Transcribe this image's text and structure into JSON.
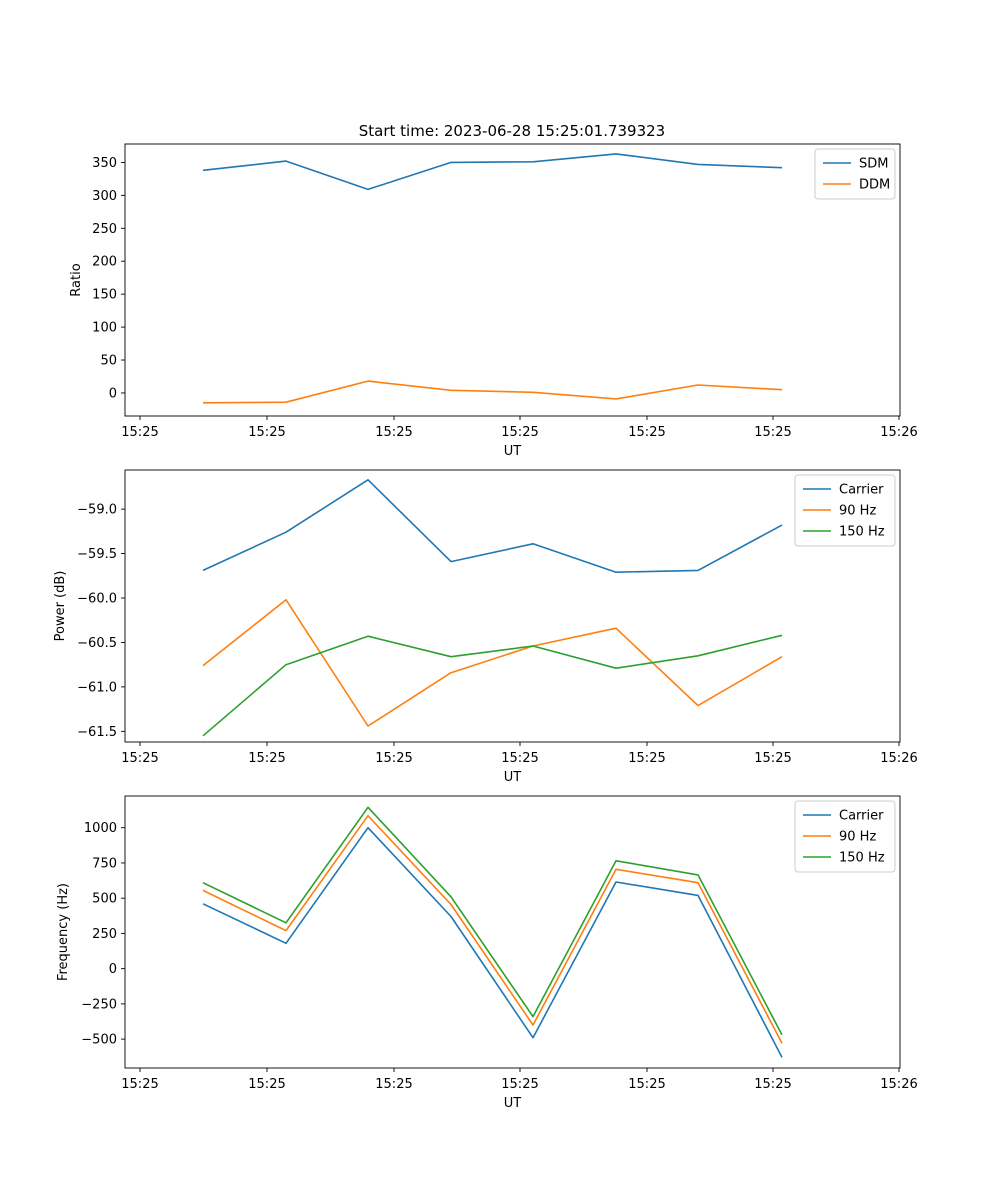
{
  "figure": {
    "title": "Start time: 2023-06-28 15:25:01.739323"
  },
  "colors": {
    "blue": "#1f77b4",
    "orange": "#ff7f0e",
    "green": "#2ca02c"
  },
  "chart_data": [
    {
      "type": "line",
      "title": "Start time: 2023-06-28 15:25:01.739323",
      "xlabel": "UT",
      "ylabel": "Ratio",
      "x_tick_labels": [
        "15:25",
        "15:25",
        "15:25",
        "15:25",
        "15:25",
        "15:25",
        "15:25"
      ],
      "x_tick_last": "15:26",
      "y_ticks": [
        0,
        50,
        100,
        150,
        200,
        250,
        300,
        350
      ],
      "ylim": [
        -35,
        378
      ],
      "legend": "top-right",
      "series": [
        {
          "name": "SDM",
          "color": "blue",
          "values": [
            338,
            352,
            309,
            350,
            351,
            363,
            347,
            342
          ]
        },
        {
          "name": "DDM",
          "color": "orange",
          "values": [
            -15,
            -14,
            18,
            4,
            1,
            -9,
            12,
            5
          ]
        }
      ]
    },
    {
      "type": "line",
      "title": "",
      "xlabel": "UT",
      "ylabel": "Power (dB)",
      "x_tick_labels": [
        "15:25",
        "15:25",
        "15:25",
        "15:25",
        "15:25",
        "15:25",
        "15:25"
      ],
      "x_tick_last": "15:26",
      "y_ticks": [
        -61.5,
        -61.0,
        -60.5,
        -60.0,
        -59.5,
        -59.0
      ],
      "y_tick_labels": [
        "−61.5",
        "−61.0",
        "−60.5",
        "−60.0",
        "−59.5",
        "−59.0"
      ],
      "ylim": [
        -61.62,
        -58.56
      ],
      "legend": "top-right",
      "series": [
        {
          "name": "Carrier",
          "color": "blue",
          "values": [
            -59.69,
            -59.26,
            -58.67,
            -59.59,
            -59.39,
            -59.71,
            -59.69,
            -59.18
          ]
        },
        {
          "name": "90 Hz",
          "color": "orange",
          "values": [
            -60.76,
            -60.02,
            -61.44,
            -60.84,
            -60.54,
            -60.34,
            -61.21,
            -60.66
          ]
        },
        {
          "name": "150 Hz",
          "color": "green",
          "values": [
            -61.55,
            -60.75,
            -60.43,
            -60.66,
            -60.54,
            -60.79,
            -60.65,
            -60.42
          ]
        }
      ]
    },
    {
      "type": "line",
      "title": "",
      "xlabel": "UT",
      "ylabel": "Frequency (Hz)",
      "x_tick_labels": [
        "15:25",
        "15:25",
        "15:25",
        "15:25",
        "15:25",
        "15:25",
        "15:25"
      ],
      "x_tick_last": "15:26",
      "y_ticks": [
        -500,
        -250,
        0,
        250,
        500,
        750,
        1000
      ],
      "y_tick_labels": [
        "−500",
        "−250",
        "0",
        "250",
        "500",
        "750",
        "1000"
      ],
      "ylim": [
        -705,
        1225
      ],
      "legend": "top-right",
      "series": [
        {
          "name": "Carrier",
          "color": "blue",
          "values": [
            460,
            180,
            1000,
            370,
            -490,
            615,
            520,
            -630
          ]
        },
        {
          "name": "90 Hz",
          "color": "orange",
          "values": [
            555,
            270,
            1085,
            455,
            -400,
            705,
            610,
            -530
          ]
        },
        {
          "name": "150 Hz",
          "color": "green",
          "values": [
            610,
            325,
            1145,
            510,
            -340,
            765,
            665,
            -470
          ]
        }
      ]
    }
  ]
}
